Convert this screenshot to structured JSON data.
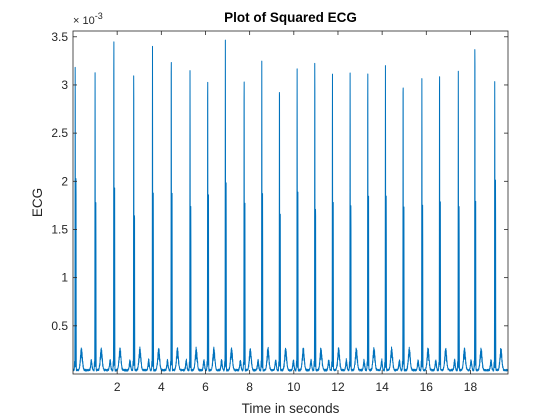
{
  "chart_data": {
    "type": "line",
    "title": "Plot of Squared ECG",
    "xlabel": "Time in seconds",
    "ylabel": "ECG",
    "xlim": [
      0,
      19.7
    ],
    "ylim": [
      0,
      0.00356
    ],
    "x_ticks": [
      2,
      4,
      6,
      8,
      10,
      12,
      14,
      16,
      18
    ],
    "x_tick_labels": [
      "2",
      "4",
      "6",
      "8",
      "10",
      "12",
      "14",
      "16",
      "18"
    ],
    "y_ticks": [
      0.0005,
      0.001,
      0.0015,
      0.002,
      0.0025,
      0.003,
      0.0035
    ],
    "y_tick_labels": [
      "0.5",
      "1",
      "1.5",
      "2",
      "2.5",
      "3",
      "3.5"
    ],
    "y_exponent": {
      "base": "× 10",
      "power": "-3"
    },
    "grid": false,
    "legend": "none",
    "line_color": "#0072BD",
    "beats": [
      {
        "t": 0.1,
        "r_peak": 0.00325,
        "s_peak": 0.00215
      },
      {
        "t": 1.0,
        "r_peak": 0.00309,
        "s_peak": 0.00175
      },
      {
        "t": 1.85,
        "r_peak": 0.00356,
        "s_peak": 0.00195
      },
      {
        "t": 2.75,
        "r_peak": 0.00321,
        "s_peak": 0.0018
      },
      {
        "t": 3.6,
        "r_peak": 0.00336,
        "s_peak": 0.00185
      },
      {
        "t": 4.45,
        "r_peak": 0.00341,
        "s_peak": 0.00195
      },
      {
        "t": 5.3,
        "r_peak": 0.00312,
        "s_peak": 0.00175
      },
      {
        "t": 6.1,
        "r_peak": 0.00317,
        "s_peak": 0.0019
      },
      {
        "t": 6.9,
        "r_peak": 0.00343,
        "s_peak": 0.00195
      },
      {
        "t": 7.75,
        "r_peak": 0.00316,
        "s_peak": 0.0018
      },
      {
        "t": 8.55,
        "r_peak": 0.0032,
        "s_peak": 0.00185
      },
      {
        "t": 9.35,
        "r_peak": 0.00312,
        "s_peak": 0.00175
      },
      {
        "t": 10.15,
        "r_peak": 0.00313,
        "s_peak": 0.00185
      },
      {
        "t": 10.95,
        "r_peak": 0.00332,
        "s_peak": 0.00185
      },
      {
        "t": 11.75,
        "r_peak": 0.00312,
        "s_peak": 0.00175
      },
      {
        "t": 12.55,
        "r_peak": 0.00313,
        "s_peak": 0.0018
      },
      {
        "t": 13.35,
        "r_peak": 0.00319,
        "s_peak": 0.00185
      },
      {
        "t": 14.15,
        "r_peak": 0.00317,
        "s_peak": 0.00185
      },
      {
        "t": 14.95,
        "r_peak": 0.00316,
        "s_peak": 0.0018
      },
      {
        "t": 15.8,
        "r_peak": 0.00304,
        "s_peak": 0.00175
      },
      {
        "t": 16.6,
        "r_peak": 0.00325,
        "s_peak": 0.00185
      },
      {
        "t": 17.45,
        "r_peak": 0.00312,
        "s_peak": 0.00175
      },
      {
        "t": 18.2,
        "r_peak": 0.00354,
        "s_peak": 0.00195
      },
      {
        "t": 19.1,
        "r_peak": 0.00303,
        "s_peak": 0.00205
      }
    ]
  }
}
